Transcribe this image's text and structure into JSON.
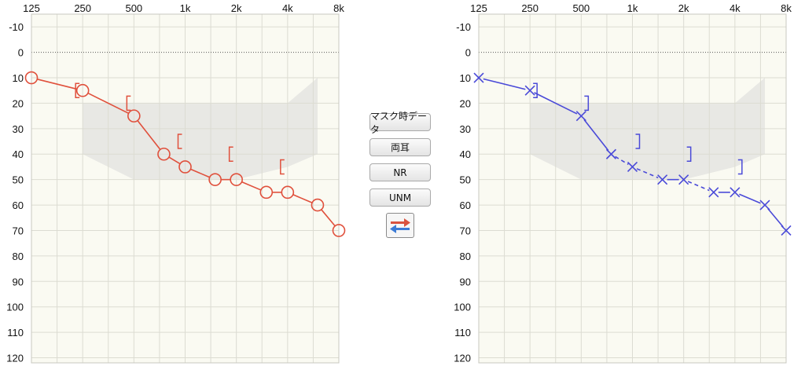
{
  "buttons": {
    "mask_data": "マスク時データ",
    "both_ears": "両耳",
    "nr": "NR",
    "unm": "UNM"
  },
  "swap_button": {
    "arrow_right_color": "#d9533f",
    "arrow_left_color": "#3c7bd6"
  },
  "colors": {
    "right_ear": "#e0503c",
    "left_ear": "#4a4ad8",
    "grid": "#dcdcd2",
    "background": "#fafaf2",
    "banana_area": "#e6e6e2"
  },
  "chart_data": [
    {
      "type": "line",
      "ear": "right",
      "x_ticks": [
        "125",
        "250",
        "500",
        "1k",
        "2k",
        "4k",
        "8k"
      ],
      "y_ticks": [
        -10,
        0,
        10,
        20,
        30,
        40,
        50,
        60,
        70,
        80,
        90,
        100,
        110,
        120
      ],
      "ylim": [
        -15,
        122
      ],
      "y_inverted": true,
      "x_scale": "log",
      "grid": true,
      "zero_line": "dotted",
      "marker": "circle",
      "color": "#e0503c",
      "air_conduction": {
        "x": [
          125,
          250,
          500,
          750,
          1000,
          1500,
          2000,
          3000,
          4000,
          6000,
          8000
        ],
        "y": [
          10,
          15,
          25,
          40,
          45,
          50,
          50,
          55,
          55,
          60,
          70
        ],
        "dashed_segments": []
      },
      "bone_conduction": {
        "symbol": "[",
        "x": [
          250,
          500,
          1000,
          2000,
          4000
        ],
        "y": [
          15,
          20,
          35,
          40,
          45
        ]
      },
      "speech_banana": {
        "upper": [
          [
            250,
            20
          ],
          [
            2000,
            20
          ],
          [
            4000,
            20
          ],
          [
            6000,
            10
          ]
        ],
        "lower": [
          [
            250,
            40
          ],
          [
            500,
            50
          ],
          [
            1000,
            50
          ],
          [
            2000,
            50
          ],
          [
            4000,
            45
          ],
          [
            6000,
            40
          ]
        ]
      }
    },
    {
      "type": "line",
      "ear": "left",
      "x_ticks": [
        "125",
        "250",
        "500",
        "1k",
        "2k",
        "4k",
        "8k"
      ],
      "y_ticks": [
        -10,
        0,
        10,
        20,
        30,
        40,
        50,
        60,
        70,
        80,
        90,
        100,
        110,
        120
      ],
      "ylim": [
        -15,
        122
      ],
      "y_inverted": true,
      "x_scale": "log",
      "grid": true,
      "zero_line": "dotted",
      "marker": "x",
      "color": "#4a4ad8",
      "air_conduction": {
        "x": [
          125,
          250,
          500,
          750,
          1000,
          1500,
          2000,
          3000,
          4000,
          6000,
          8000
        ],
        "y": [
          10,
          15,
          25,
          40,
          45,
          50,
          50,
          55,
          55,
          60,
          70
        ],
        "dashed_segments": [
          3,
          4,
          6
        ]
      },
      "bone_conduction": {
        "symbol": "]",
        "x": [
          250,
          500,
          1000,
          2000,
          4000
        ],
        "y": [
          15,
          20,
          35,
          40,
          45
        ]
      },
      "speech_banana": {
        "upper": [
          [
            250,
            20
          ],
          [
            2000,
            20
          ],
          [
            4000,
            20
          ],
          [
            6000,
            10
          ]
        ],
        "lower": [
          [
            250,
            40
          ],
          [
            500,
            50
          ],
          [
            1000,
            50
          ],
          [
            2000,
            50
          ],
          [
            4000,
            45
          ],
          [
            6000,
            40
          ]
        ]
      }
    }
  ]
}
